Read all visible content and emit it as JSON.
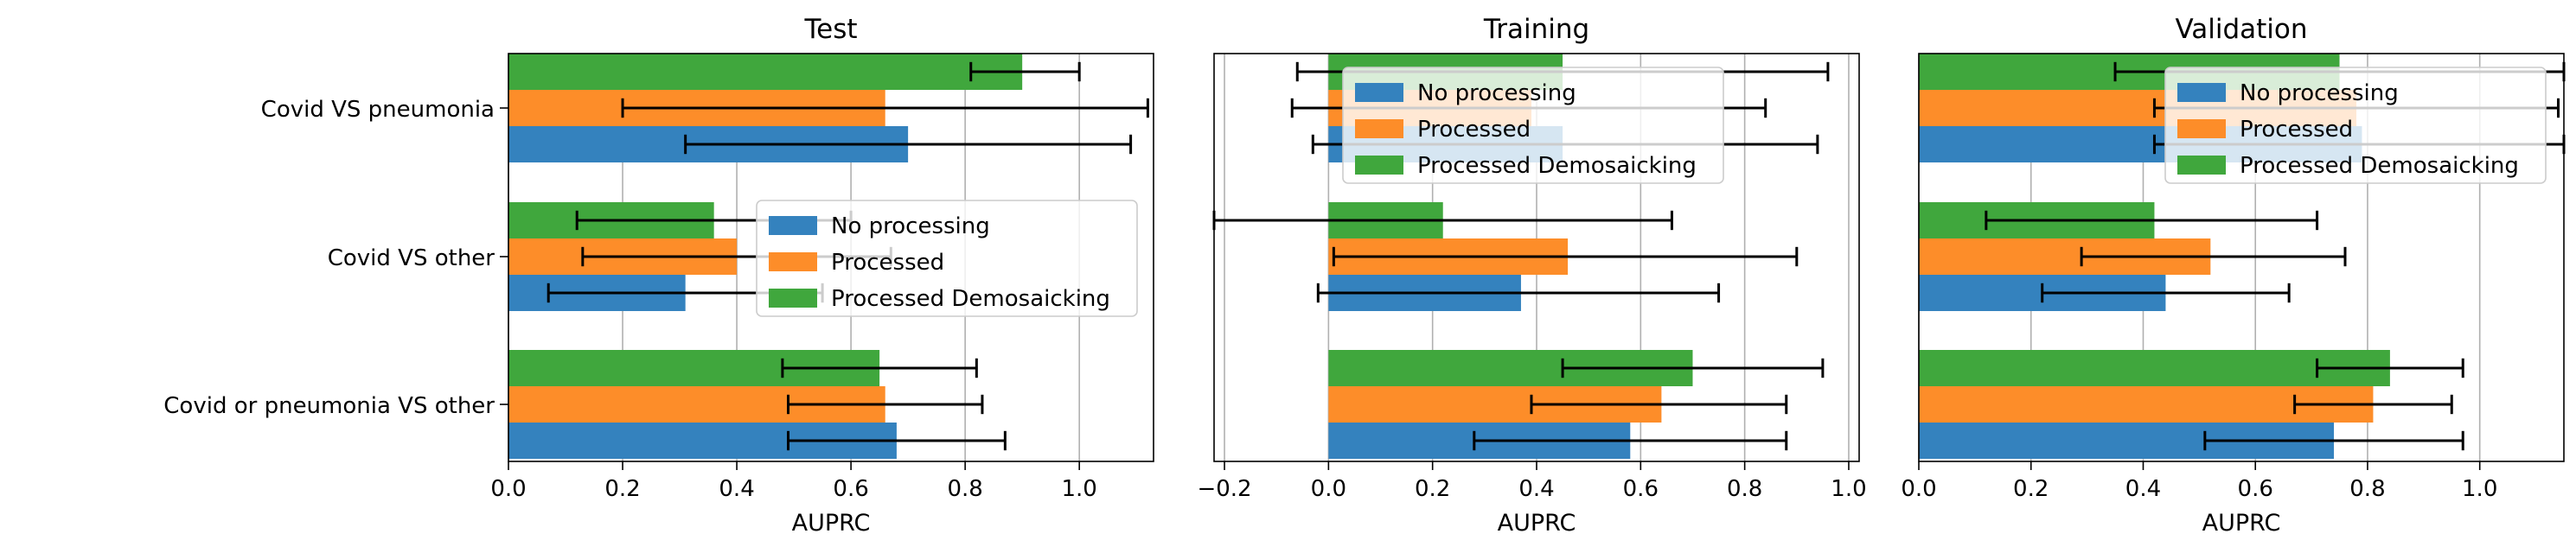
{
  "chart_data": [
    {
      "type": "bar",
      "orientation": "horizontal",
      "title": "Test",
      "xlabel": "AUPRC",
      "xlim": [
        0.0,
        1.13
      ],
      "xticks": [
        0.0,
        0.2,
        0.4,
        0.6,
        0.8,
        1.0
      ],
      "xtick_labels": [
        "0.0",
        "0.2",
        "0.4",
        "0.6",
        "0.8",
        "1.0"
      ],
      "grid": "x",
      "legend": "center-right",
      "categories": [
        "Covid VS pneumonia",
        "Covid VS other",
        "Covid or pneumonia VS other"
      ],
      "series": [
        {
          "name": "No processing",
          "color": "#3482be",
          "values": [
            0.7,
            0.31,
            0.68
          ],
          "err_low": [
            0.31,
            0.07,
            0.49
          ],
          "err_high": [
            1.09,
            0.55,
            0.87
          ]
        },
        {
          "name": "Processed",
          "color": "#fd8d29",
          "values": [
            0.66,
            0.4,
            0.66
          ],
          "err_low": [
            0.2,
            0.13,
            0.49
          ],
          "err_high": [
            1.12,
            0.67,
            0.83
          ]
        },
        {
          "name": "Processed Demosaicking",
          "color": "#40a73d",
          "values": [
            0.9,
            0.36,
            0.65
          ],
          "err_low": [
            0.81,
            0.12,
            0.48
          ],
          "err_high": [
            1.0,
            0.6,
            0.82
          ]
        }
      ]
    },
    {
      "type": "bar",
      "orientation": "horizontal",
      "title": "Training",
      "xlabel": "AUPRC",
      "xlim": [
        -0.22,
        1.02
      ],
      "xticks": [
        -0.2,
        0.0,
        0.2,
        0.4,
        0.6,
        0.8,
        1.0
      ],
      "xtick_labels": [
        "−0.2",
        "0.0",
        "0.2",
        "0.4",
        "0.6",
        "0.8",
        "1.0"
      ],
      "grid": "x",
      "legend": "top-right",
      "categories": [
        "Covid VS pneumonia",
        "Covid VS other",
        "Covid or pneumonia VS other"
      ],
      "series": [
        {
          "name": "No processing",
          "color": "#3482be",
          "values": [
            0.45,
            0.37,
            0.58
          ],
          "err_low": [
            -0.03,
            -0.02,
            0.28
          ],
          "err_high": [
            0.94,
            0.75,
            0.88
          ]
        },
        {
          "name": "Processed",
          "color": "#fd8d29",
          "values": [
            0.39,
            0.46,
            0.64
          ],
          "err_low": [
            -0.07,
            0.01,
            0.39
          ],
          "err_high": [
            0.84,
            0.9,
            0.88
          ]
        },
        {
          "name": "Processed Demosaicking",
          "color": "#40a73d",
          "values": [
            0.45,
            0.22,
            0.7
          ],
          "err_low": [
            -0.06,
            -0.22,
            0.45
          ],
          "err_high": [
            0.96,
            0.66,
            0.95
          ]
        }
      ]
    },
    {
      "type": "bar",
      "orientation": "horizontal",
      "title": "Validation",
      "xlabel": "AUPRC",
      "xlim": [
        0.0,
        1.15
      ],
      "xticks": [
        0.0,
        0.2,
        0.4,
        0.6,
        0.8,
        1.0
      ],
      "xtick_labels": [
        "0.0",
        "0.2",
        "0.4",
        "0.6",
        "0.8",
        "1.0"
      ],
      "grid": "x",
      "legend": "top-right",
      "categories": [
        "Covid VS pneumonia",
        "Covid VS other",
        "Covid or pneumonia VS other"
      ],
      "series": [
        {
          "name": "No processing",
          "color": "#3482be",
          "values": [
            0.79,
            0.44,
            0.74
          ],
          "err_low": [
            0.42,
            0.22,
            0.51
          ],
          "err_high": [
            1.15,
            0.66,
            0.97
          ]
        },
        {
          "name": "Processed",
          "color": "#fd8d29",
          "values": [
            0.78,
            0.52,
            0.81
          ],
          "err_low": [
            0.42,
            0.29,
            0.67
          ],
          "err_high": [
            1.14,
            0.76,
            0.95
          ]
        },
        {
          "name": "Processed Demosaicking",
          "color": "#40a73d",
          "values": [
            0.75,
            0.42,
            0.84
          ],
          "err_low": [
            0.35,
            0.12,
            0.71
          ],
          "err_high": [
            1.15,
            0.71,
            0.97
          ]
        }
      ]
    }
  ]
}
